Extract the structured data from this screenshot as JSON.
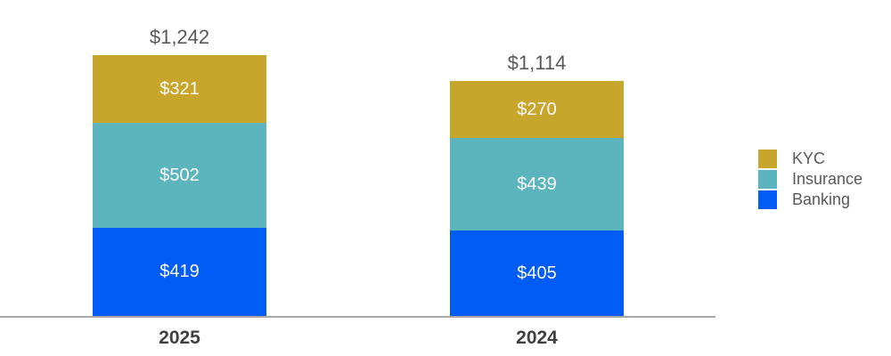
{
  "chart_data": {
    "type": "bar",
    "subtype": "stacked-column",
    "categories": [
      "2025",
      "2024"
    ],
    "series": [
      {
        "name": "Banking",
        "color": "#005cf5",
        "values": [
          419,
          405
        ],
        "labels": [
          "$419",
          "$405"
        ]
      },
      {
        "name": "Insurance",
        "color": "#5cb4bc",
        "values": [
          502,
          439
        ],
        "labels": [
          "$502",
          "$439"
        ]
      },
      {
        "name": "KYC",
        "color": "#c8a62b",
        "values": [
          321,
          270
        ],
        "labels": [
          "$321",
          "$270"
        ]
      }
    ],
    "totals": [
      1242,
      1114
    ],
    "total_labels": [
      "$1,242",
      "$1,114"
    ],
    "legend": {
      "position": "right",
      "entries": [
        {
          "label": "KYC",
          "color": "#c8a62b"
        },
        {
          "label": "Insurance",
          "color": "#5cb4bc"
        },
        {
          "label": "Banking",
          "color": "#005cf5"
        }
      ]
    },
    "title": "",
    "xlabel": "",
    "ylabel": "",
    "ylim": [
      0,
      1242
    ],
    "grid": false,
    "axis_line_color": "#a7a7a7",
    "value_label_color": "#fafafa",
    "total_label_color": "#595959",
    "category_label_color": "#404040"
  }
}
